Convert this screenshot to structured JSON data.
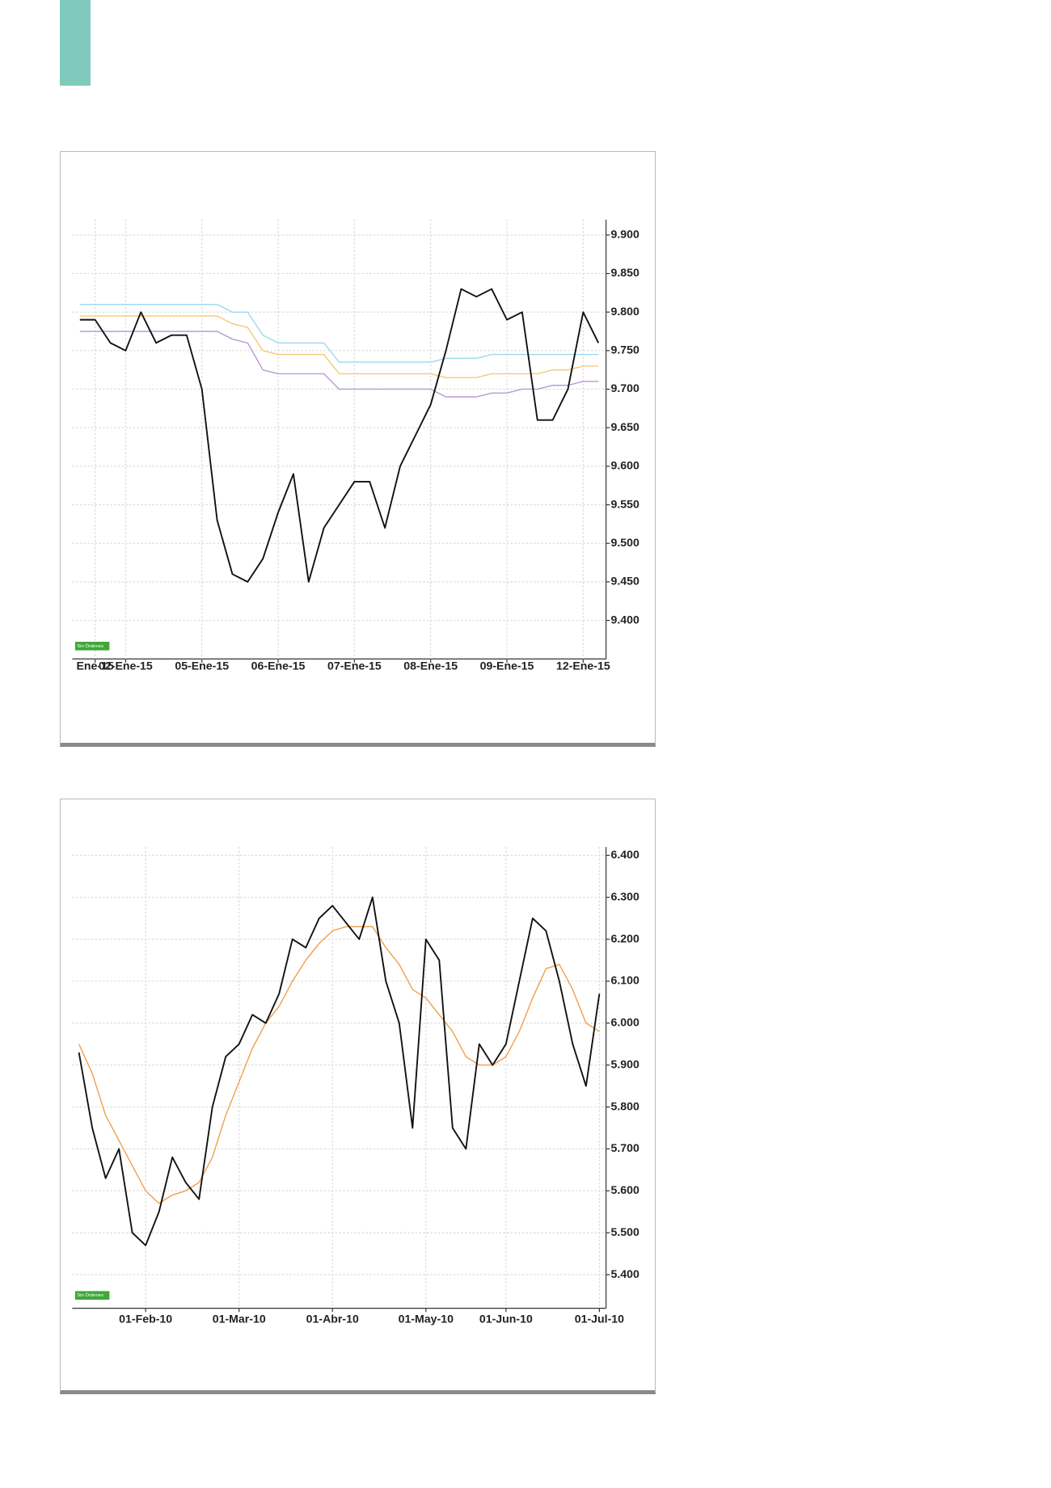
{
  "chart_data": [
    {
      "type": "line",
      "badge": "Sin Órdenes",
      "categories": [
        null,
        "Ene-15",
        null,
        "02-Ene-15",
        null,
        null,
        null,
        null,
        "05-Ene-15",
        null,
        null,
        null,
        null,
        "06-Ene-15",
        null,
        null,
        null,
        null,
        "07-Ene-15",
        null,
        null,
        null,
        null,
        "08-Ene-15",
        null,
        null,
        null,
        null,
        "09-Ene-15",
        null,
        null,
        null,
        null,
        "12-Ene-15",
        null
      ],
      "series": [
        {
          "color": "#111111",
          "values": [
            9.79,
            9.79,
            9.76,
            9.75,
            9.8,
            9.76,
            9.77,
            9.77,
            9.7,
            9.53,
            9.46,
            9.45,
            9.48,
            9.54,
            9.59,
            9.45,
            9.52,
            9.55,
            9.58,
            9.58,
            9.52,
            9.6,
            9.64,
            9.68,
            9.75,
            9.83,
            9.82,
            9.83,
            9.79,
            9.8,
            9.66,
            9.66,
            9.7,
            9.8,
            9.76
          ]
        },
        {
          "color": "#9fd8ef",
          "values": [
            9.81,
            9.81,
            9.81,
            9.81,
            9.81,
            9.81,
            9.81,
            9.81,
            9.81,
            9.81,
            9.8,
            9.8,
            9.77,
            9.76,
            9.76,
            9.76,
            9.76,
            9.735,
            9.735,
            9.735,
            9.735,
            9.735,
            9.735,
            9.735,
            9.74,
            9.74,
            9.74,
            9.745,
            9.745,
            9.745,
            9.745,
            9.745,
            9.745,
            9.745,
            9.745
          ]
        },
        {
          "color": "#f5c97a",
          "values": [
            9.795,
            9.795,
            9.795,
            9.795,
            9.795,
            9.795,
            9.795,
            9.795,
            9.795,
            9.795,
            9.785,
            9.78,
            9.75,
            9.745,
            9.745,
            9.745,
            9.745,
            9.72,
            9.72,
            9.72,
            9.72,
            9.72,
            9.72,
            9.72,
            9.715,
            9.715,
            9.715,
            9.72,
            9.72,
            9.72,
            9.72,
            9.725,
            9.725,
            9.73,
            9.73
          ]
        },
        {
          "color": "#b89ad6",
          "values": [
            9.775,
            9.775,
            9.775,
            9.775,
            9.775,
            9.775,
            9.775,
            9.775,
            9.775,
            9.775,
            9.765,
            9.76,
            9.725,
            9.72,
            9.72,
            9.72,
            9.72,
            9.7,
            9.7,
            9.7,
            9.7,
            9.7,
            9.7,
            9.7,
            9.69,
            9.69,
            9.69,
            9.695,
            9.695,
            9.7,
            9.7,
            9.705,
            9.705,
            9.71,
            9.71
          ]
        }
      ],
      "ylim": [
        9.35,
        9.92
      ],
      "yticks": [
        {
          "value": 9.4,
          "label": "9.400"
        },
        {
          "value": 9.45,
          "label": "9.450"
        },
        {
          "value": 9.5,
          "label": "9.500"
        },
        {
          "value": 9.55,
          "label": "9.550"
        },
        {
          "value": 9.6,
          "label": "9.600"
        },
        {
          "value": 9.65,
          "label": "9.650"
        },
        {
          "value": 9.7,
          "label": "9.700"
        },
        {
          "value": 9.75,
          "label": "9.750"
        },
        {
          "value": 9.8,
          "label": "9.800"
        },
        {
          "value": 9.85,
          "label": "9.850"
        },
        {
          "value": 9.9,
          "label": "9.900"
        }
      ],
      "grid": true
    },
    {
      "type": "line",
      "badge": "Sin Órdenes",
      "categories": [
        null,
        null,
        null,
        null,
        null,
        "01-Feb-10",
        null,
        null,
        null,
        null,
        null,
        null,
        "01-Mar-10",
        null,
        null,
        null,
        null,
        null,
        null,
        "01-Abr-10",
        null,
        null,
        null,
        null,
        null,
        null,
        "01-May-10",
        null,
        null,
        null,
        null,
        null,
        "01-Jun-10",
        null,
        null,
        null,
        null,
        null,
        null,
        "01-Jul-10"
      ],
      "series": [
        {
          "color": "#111111",
          "values": [
            5.93,
            5.75,
            5.63,
            5.7,
            5.5,
            5.47,
            5.55,
            5.68,
            5.62,
            5.58,
            5.8,
            5.92,
            5.95,
            6.02,
            6.0,
            6.07,
            6.2,
            6.18,
            6.25,
            6.28,
            6.24,
            6.2,
            6.3,
            6.1,
            6.0,
            5.75,
            6.2,
            6.15,
            5.75,
            5.7,
            5.95,
            5.9,
            5.95,
            6.1,
            6.25,
            6.22,
            6.1,
            5.95,
            5.85,
            6.07
          ]
        },
        {
          "color": "#f0a050",
          "values": [
            5.95,
            5.88,
            5.78,
            5.72,
            5.66,
            5.6,
            5.57,
            5.59,
            5.6,
            5.62,
            5.68,
            5.78,
            5.86,
            5.94,
            6.0,
            6.04,
            6.1,
            6.15,
            6.19,
            6.22,
            6.23,
            6.23,
            6.23,
            6.18,
            6.14,
            6.08,
            6.06,
            6.02,
            5.98,
            5.92,
            5.9,
            5.9,
            5.92,
            5.98,
            6.06,
            6.13,
            6.14,
            6.08,
            6.0,
            5.98
          ]
        }
      ],
      "ylim": [
        5.32,
        6.42
      ],
      "yticks": [
        {
          "value": 5.4,
          "label": "5.400"
        },
        {
          "value": 5.5,
          "label": "5.500"
        },
        {
          "value": 5.6,
          "label": "5.600"
        },
        {
          "value": 5.7,
          "label": "5.700"
        },
        {
          "value": 5.8,
          "label": "5.800"
        },
        {
          "value": 5.9,
          "label": "5.900"
        },
        {
          "value": 6.0,
          "label": "6.000"
        },
        {
          "value": 6.1,
          "label": "6.100"
        },
        {
          "value": 6.2,
          "label": "6.200"
        },
        {
          "value": 6.3,
          "label": "6.300"
        },
        {
          "value": 6.4,
          "label": "6.400"
        }
      ],
      "grid": true
    }
  ]
}
